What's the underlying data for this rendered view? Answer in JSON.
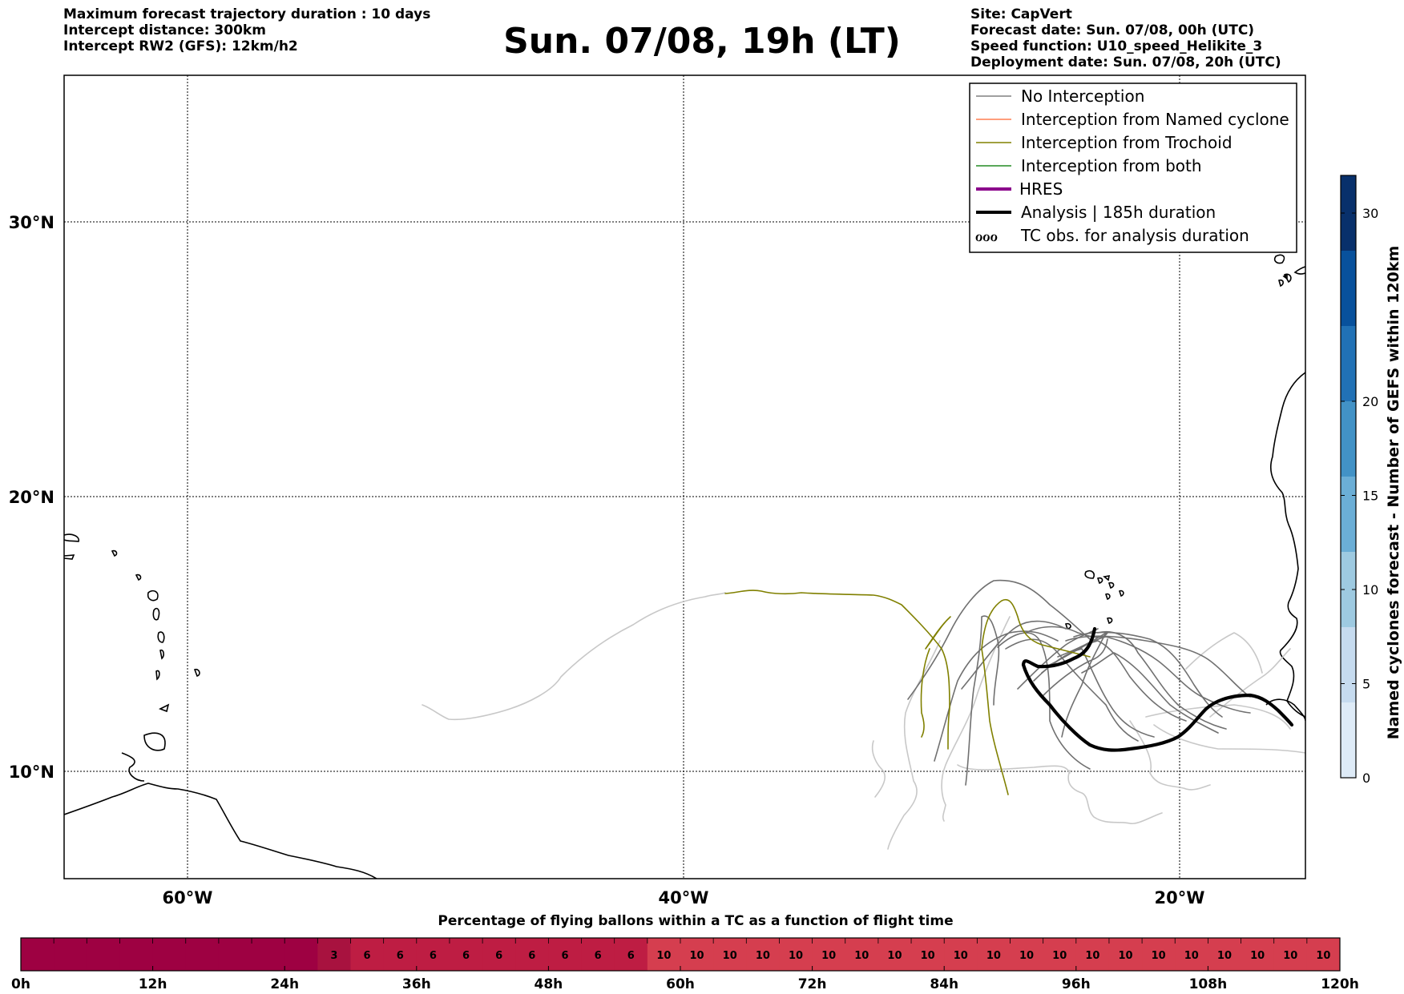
{
  "header_left": [
    "Maximum forecast trajectory duration : 10 days",
    "Intercept distance: 300km",
    "Intercept RW2 (GFS):  12km/h2"
  ],
  "title": "Sun. 07/08, 19h (LT)",
  "header_right": [
    "Site: CapVert",
    "Forecast date: Sun. 07/08, 00h (UTC)",
    "Speed function: U10_speed_Helikite_3",
    "Deployment date: Sun. 07/08, 20h (UTC)"
  ],
  "map": {
    "lat_labels": [
      {
        "label": "30°N",
        "lat": 30
      },
      {
        "label": "20°N",
        "lat": 20
      },
      {
        "label": "10°N",
        "lat": 10
      }
    ],
    "lon_labels": [
      {
        "label": "60°W",
        "lon": -60
      },
      {
        "label": "40°W",
        "lon": -40
      },
      {
        "label": "20°W",
        "lon": -20
      }
    ],
    "legend": [
      {
        "label": "No Interception",
        "color": "#808080",
        "style": "thin"
      },
      {
        "label": "Interception from Named cyclone",
        "color": "#ff7f50",
        "style": "thin"
      },
      {
        "label": "Interception from Trochoid",
        "color": "#808000",
        "style": "thin"
      },
      {
        "label": "Interception from both",
        "color": "#228b22",
        "style": "thin"
      },
      {
        "label": "HRES",
        "color": "#8b008b",
        "style": "thick"
      },
      {
        "label": "Analysis | 185h duration",
        "color": "#000000",
        "style": "thick"
      },
      {
        "label": "TC obs. for analysis duration",
        "color": "#000000",
        "style": "symbol",
        "symbol": "ℴℴℴ"
      }
    ]
  },
  "colorbar_right": {
    "title": "Named cyclones forecast - Number of GEFS within 120km",
    "ticks": [
      "0",
      "5",
      "10",
      "15",
      "20",
      "30"
    ],
    "tick_values": [
      0,
      5,
      10,
      15,
      20,
      30
    ],
    "max": 32,
    "colors": [
      "#deebf7",
      "#c6dbef",
      "#9ecae1",
      "#6baed6",
      "#4292c6",
      "#2171b5",
      "#08519c",
      "#08306b"
    ]
  },
  "bottom_bar": {
    "title": "Percentage of flying ballons within a TC as a function of flight time",
    "tick_labels": [
      "0h",
      "12h",
      "24h",
      "36h",
      "48h",
      "60h",
      "72h",
      "84h",
      "96h",
      "108h",
      "120h"
    ],
    "cell_values": [
      0,
      0,
      0,
      0,
      0,
      0,
      0,
      0,
      0,
      3,
      6,
      6,
      6,
      6,
      6,
      6,
      6,
      6,
      6,
      10,
      10,
      10,
      10,
      10,
      10,
      10,
      10,
      10,
      10,
      10,
      10,
      10,
      10,
      10,
      10,
      10,
      10,
      10,
      10,
      10
    ],
    "colors": {
      "0": "#9e0142",
      "3": "#a8123f",
      "6": "#be1d43",
      "10": "#d53e4f"
    }
  }
}
